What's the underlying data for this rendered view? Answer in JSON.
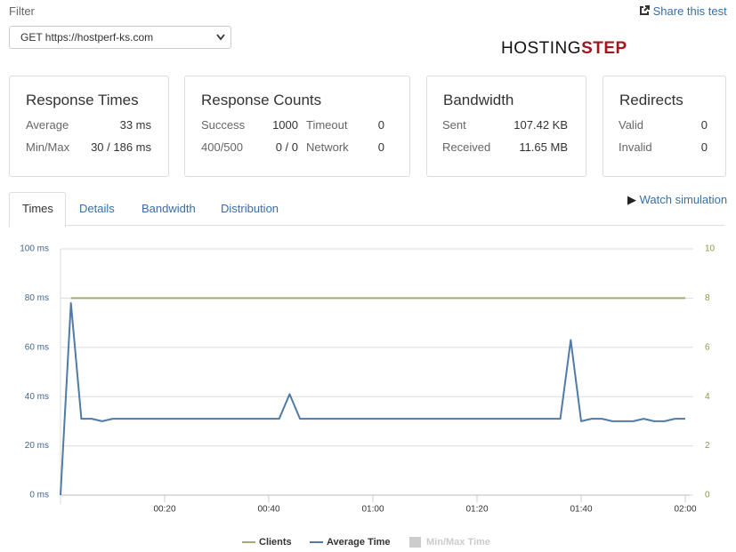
{
  "header": {
    "filter_label": "Filter",
    "filter_value": "GET https://hostperf-ks.com",
    "share": "Share this test",
    "logo_main": "HOSTING",
    "logo_accent": "STEP"
  },
  "cards": [
    {
      "title": "Response Times",
      "rows": [
        [
          "Average",
          "33 ms"
        ],
        [
          "Min/Max",
          "30 / 186 ms"
        ]
      ]
    },
    {
      "title": "Response Counts",
      "rows": [
        [
          "Success",
          "1000",
          "Timeout",
          "0"
        ],
        [
          "400/500",
          "0 / 0",
          "Network",
          "0"
        ]
      ]
    },
    {
      "title": "Bandwidth",
      "rows": [
        [
          "Sent",
          "107.42 KB"
        ],
        [
          "Received",
          "11.65 MB"
        ]
      ]
    },
    {
      "title": "Redirects",
      "rows": [
        [
          "Valid",
          "0"
        ],
        [
          "Invalid",
          "0"
        ]
      ]
    }
  ],
  "tabs": [
    "Times",
    "Details",
    "Bandwidth",
    "Distribution"
  ],
  "watch": "Watch simulation",
  "chart_data": {
    "type": "line",
    "x": [
      0,
      2,
      4,
      6,
      8,
      10,
      20,
      30,
      40,
      42,
      44,
      46,
      60,
      80,
      94,
      96,
      98,
      100,
      102,
      104,
      106,
      110,
      112,
      114,
      116,
      118,
      120
    ],
    "series": [
      {
        "name": "Clients",
        "color": "#a0ad6e",
        "axis": "y2",
        "values": [
          null,
          8,
          8,
          8,
          8,
          8,
          8,
          8,
          8,
          8,
          8,
          8,
          8,
          8,
          8,
          8,
          8,
          8,
          8,
          8,
          8,
          8,
          8,
          8,
          8,
          8,
          8
        ]
      },
      {
        "name": "Average Time",
        "color": "#4f7ba6",
        "values": [
          0,
          78,
          31,
          31,
          30,
          31,
          31,
          31,
          31,
          31,
          41,
          31,
          31,
          31,
          31,
          31,
          63,
          30,
          31,
          31,
          30,
          30,
          31,
          30,
          30,
          31,
          31
        ]
      },
      {
        "name": "Min/Max Time",
        "color": "#cccccc",
        "values": [
          null,
          null,
          null,
          null,
          null,
          null,
          null,
          null,
          null,
          null,
          null,
          null,
          null,
          null,
          null,
          null,
          null,
          null,
          null,
          null,
          null,
          null,
          null,
          null,
          null,
          null,
          null
        ]
      }
    ],
    "xlim": [
      0,
      120
    ],
    "xticks": [
      {
        "value": 20,
        "label": "00:20"
      },
      {
        "value": 40,
        "label": "00:40"
      },
      {
        "value": 60,
        "label": "01:00"
      },
      {
        "value": 80,
        "label": "01:20"
      },
      {
        "value": 100,
        "label": "01:40"
      },
      {
        "value": 120,
        "label": "02:00"
      }
    ],
    "ylim": [
      0,
      100
    ],
    "yticks": [
      {
        "value": 0,
        "label": "0 ms"
      },
      {
        "value": 20,
        "label": "20 ms"
      },
      {
        "value": 40,
        "label": "40 ms"
      },
      {
        "value": 60,
        "label": "60 ms"
      },
      {
        "value": 80,
        "label": "80 ms"
      },
      {
        "value": 100,
        "label": "100 ms"
      }
    ],
    "y2lim": [
      0,
      10
    ],
    "y2ticks": [
      0,
      2,
      4,
      6,
      8,
      10
    ],
    "grid": true
  }
}
